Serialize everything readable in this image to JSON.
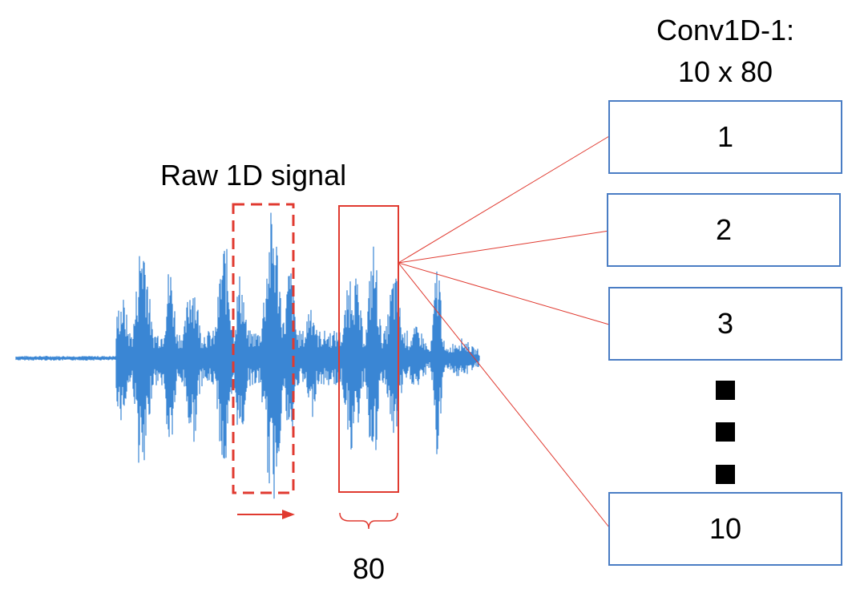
{
  "title": "Raw 1D signal",
  "layer": {
    "name_line1": "Conv1D-1:",
    "name_line2": "10 x 80"
  },
  "filters": [
    {
      "label": "1"
    },
    {
      "label": "2"
    },
    {
      "label": "3"
    },
    {
      "label": "10"
    }
  ],
  "window_length_label": "80",
  "colors": {
    "signal": "#3a86d4",
    "window": "#e03a30",
    "filter_border": "#4a7dc4"
  },
  "icons": {
    "ellipsis": "vertical-ellipsis-squares",
    "slide_direction": "right-arrow"
  }
}
